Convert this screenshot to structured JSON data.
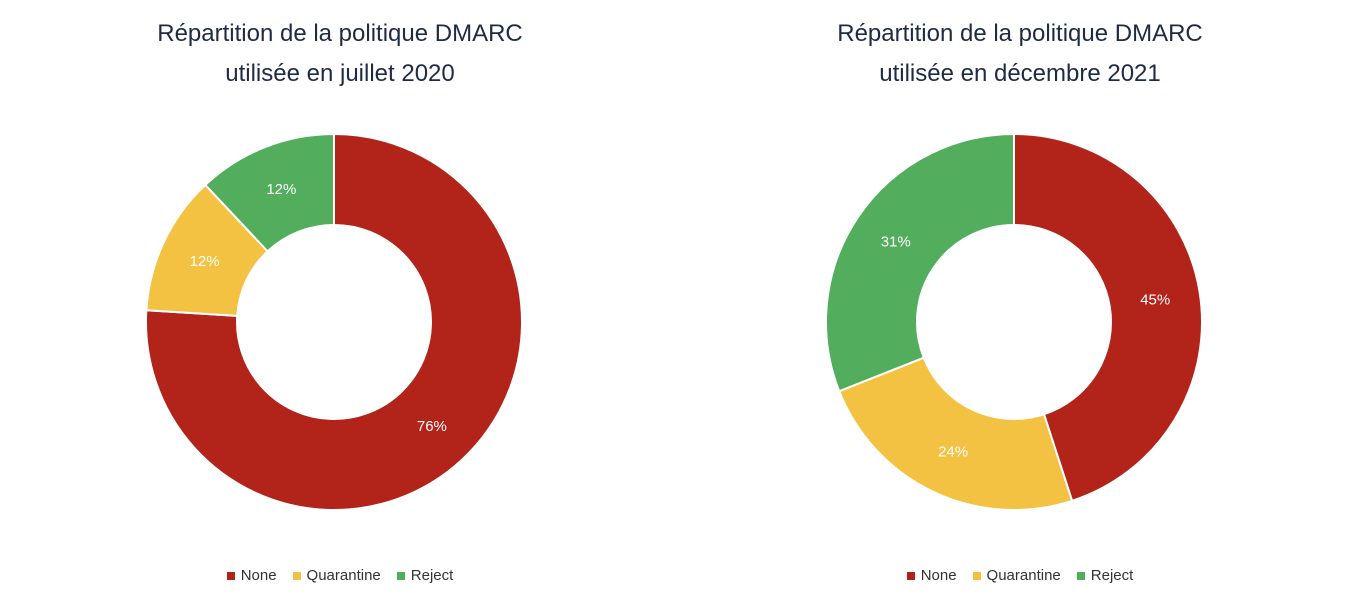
{
  "colors": {
    "None": "#b22319",
    "Quarantine": "#f4c242",
    "Reject": "#52ae5c"
  },
  "legend_labels": [
    "None",
    "Quarantine",
    "Reject"
  ],
  "chart_data": [
    {
      "type": "pie",
      "title_lines": [
        "Répartition de la politique DMARC",
        "utilisée en juillet 2020"
      ],
      "categories": [
        "None",
        "Quarantine",
        "Reject"
      ],
      "values": [
        76,
        12,
        12
      ],
      "value_labels": [
        "76%",
        "12%",
        "12%"
      ],
      "legend_position": "bottom",
      "order": "clockwise from top: None, Quarantine, Reject"
    },
    {
      "type": "pie",
      "title_lines": [
        "Répartition de la politique DMARC",
        "utilisée en décembre 2021"
      ],
      "categories": [
        "None",
        "Quarantine",
        "Reject"
      ],
      "values": [
        45,
        24,
        31
      ],
      "value_labels": [
        "45%",
        "24%",
        "31%"
      ],
      "legend_position": "bottom",
      "order": "clockwise from top: None, Quarantine, Reject"
    }
  ]
}
